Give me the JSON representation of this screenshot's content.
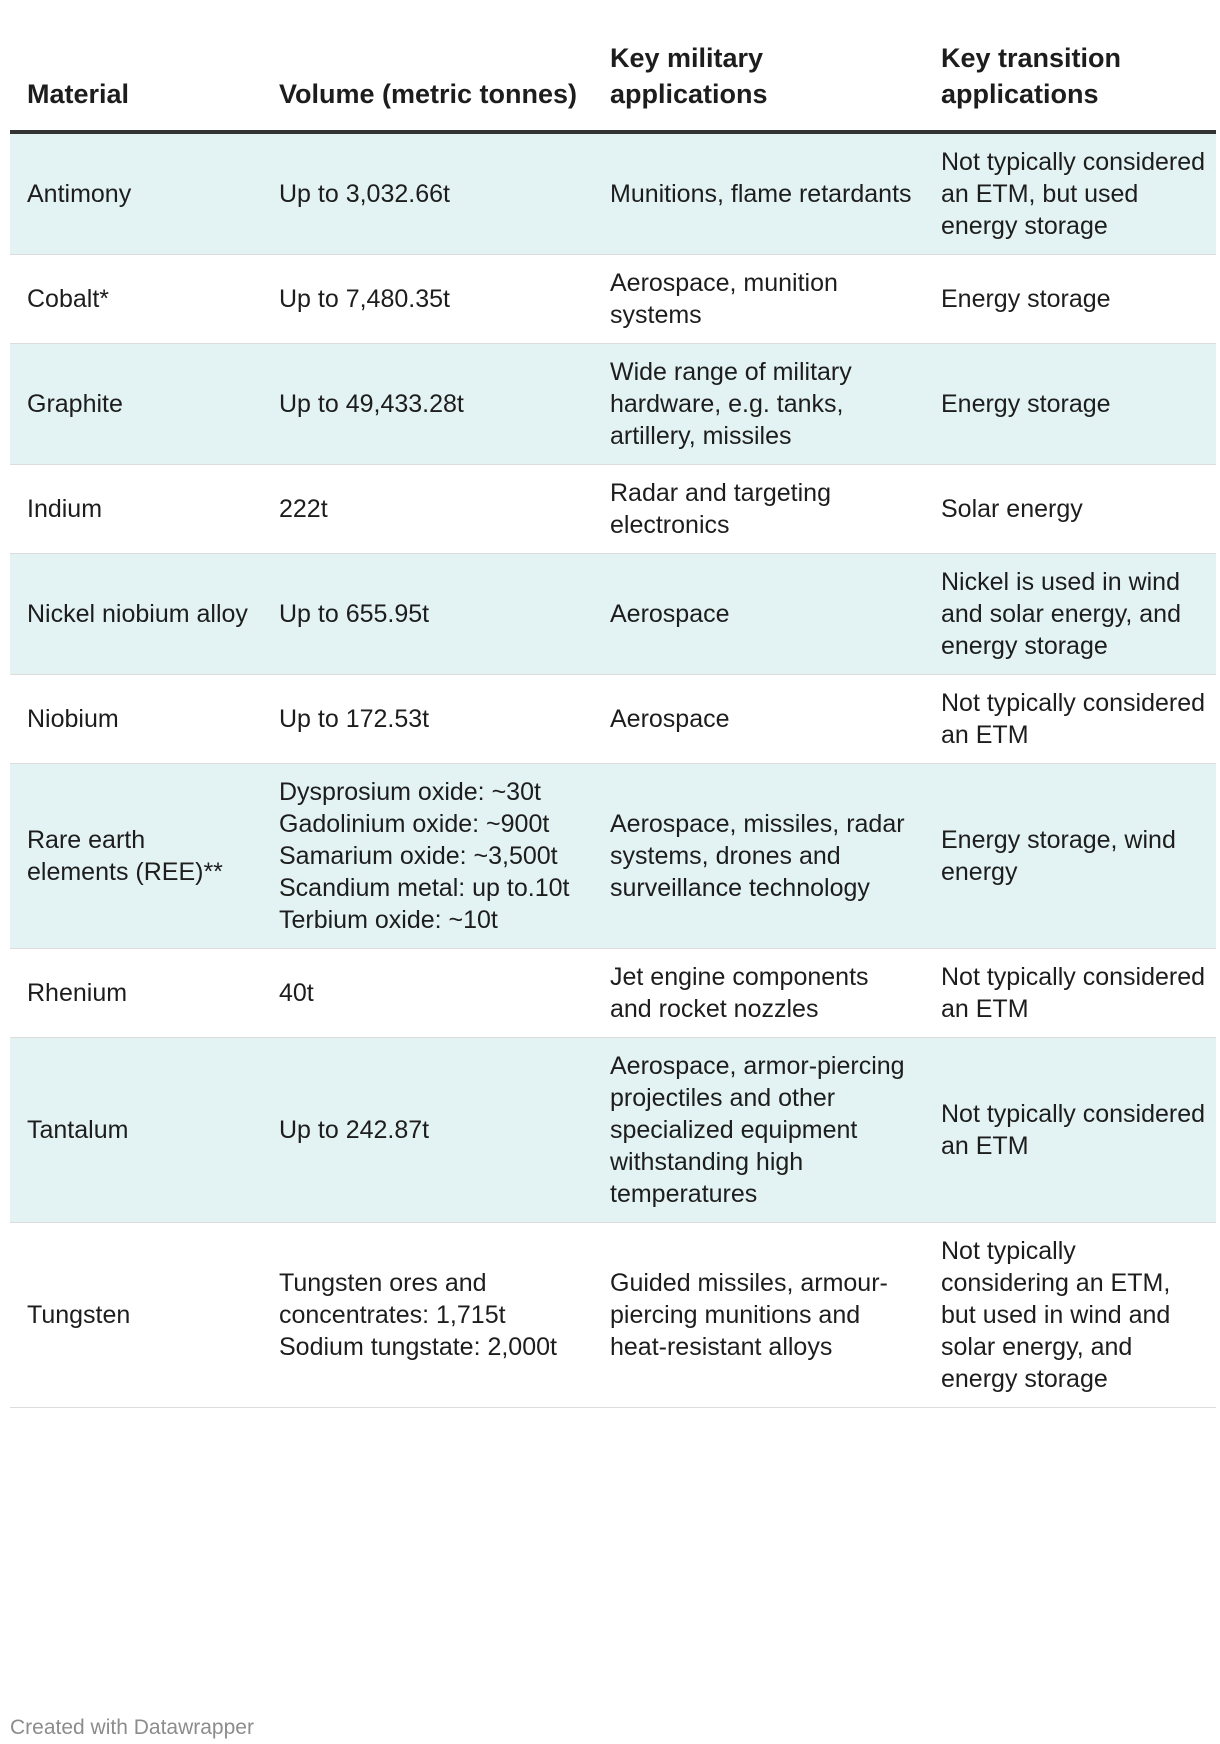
{
  "table": {
    "headers": [
      "Material",
      "Volume (metric tonnes)",
      "Key military applications",
      "Key transition applications"
    ],
    "rows": [
      [
        "Antimony",
        "Up to 3,032.66t",
        "Munitions, flame retardants",
        "Not typically considered an ETM, but used energy storage"
      ],
      [
        "Cobalt*",
        "Up to 7,480.35t",
        "Aerospace, munition systems",
        "Energy storage"
      ],
      [
        "Graphite",
        "Up to 49,433.28t",
        "Wide range of military hardware, e.g. tanks, artillery, missiles",
        "Energy storage"
      ],
      [
        "Indium",
        "222t",
        "Radar and targeting electronics",
        "Solar energy"
      ],
      [
        "Nickel niobium alloy",
        "Up to 655.95t",
        "Aerospace",
        "Nickel is used in wind and solar energy, and energy storage"
      ],
      [
        "Niobium",
        "Up to 172.53t",
        "Aerospace",
        "Not typically considered an ETM"
      ],
      [
        "Rare earth elements (REE)**",
        "Dysprosium oxide: ~30t\nGadolinium oxide: ~900t\nSamarium oxide: ~3,500t\nScandium metal: up to.10t\nTerbium oxide: ~10t",
        "Aerospace, missiles, radar systems, drones and surveillance technology",
        "Energy storage, wind energy"
      ],
      [
        "Rhenium",
        "40t",
        "Jet engine components and rocket nozzles",
        "Not typically considered an ETM"
      ],
      [
        "Tantalum",
        "Up to 242.87t",
        "Aerospace, armor-piercing projectiles and other specialized equipment withstanding high temperatures",
        "Not typically considered an ETM"
      ],
      [
        "Tungsten",
        "Tungsten ores and concentrates: 1,715t\nSodium tungstate: 2,000t",
        "Guided missiles, armour-piercing munitions and heat-resistant alloys",
        "Not typically considering an ETM, but used in wind and solar energy, and energy storage"
      ]
    ]
  },
  "footer": "Created with Datawrapper",
  "colors": {
    "stripe": "#e3f2f2",
    "header_rule": "#333333",
    "footer_text": "#8c8c8c"
  }
}
